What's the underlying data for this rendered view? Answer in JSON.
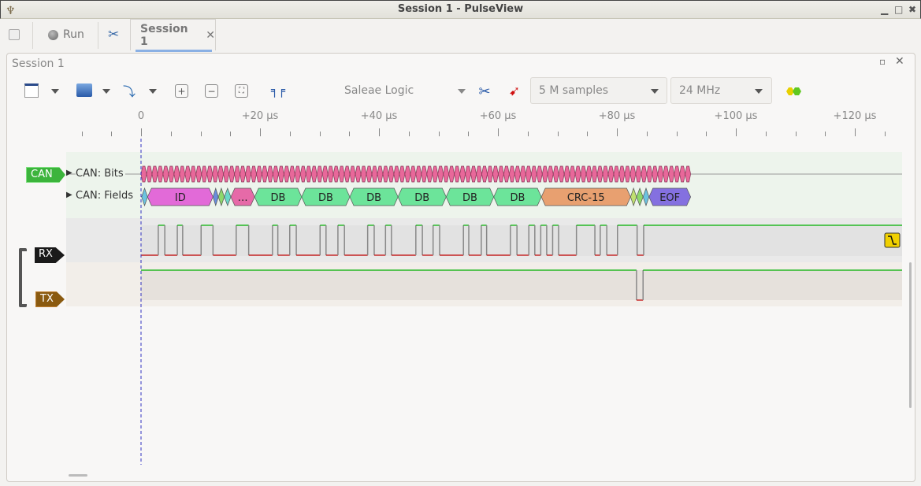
{
  "window": {
    "title": "Session 1 - PulseView"
  },
  "tabs": {
    "run_label": "Run",
    "session_tab": "Session 1"
  },
  "session": {
    "title": "Session 1"
  },
  "toolbar": {
    "device": "Saleae Logic",
    "samples": "5 M samples",
    "samplerate": "24 MHz"
  },
  "ruler": {
    "unit": "µs",
    "labels": [
      "0",
      "+20 µs",
      "+40 µs",
      "+60 µs",
      "+80 µs",
      "+100 µs",
      "+120 µs"
    ],
    "major_values": [
      0,
      20,
      40,
      60,
      80,
      100,
      120
    ],
    "minor_step": 5,
    "range": [
      -10,
      128
    ]
  },
  "decoder": {
    "tag": "CAN",
    "color": "#3cb43c",
    "rows": [
      {
        "label": "CAN: Bits"
      },
      {
        "label": "CAN: Fields"
      }
    ],
    "bits": {
      "start": 0,
      "end": 92.4,
      "color": "#e8689a"
    },
    "fields": [
      {
        "label": "",
        "start": 0.1,
        "end": 1.1,
        "color": "#6bc3e0"
      },
      {
        "label": "ID",
        "start": 1.1,
        "end": 12.1,
        "color": "#e26ad8"
      },
      {
        "label": "",
        "start": 12.1,
        "end": 13.0,
        "color": "#6a8ddc"
      },
      {
        "label": "",
        "start": 13.0,
        "end": 14.0,
        "color": "#8ed86b"
      },
      {
        "label": "",
        "start": 14.0,
        "end": 15.1,
        "color": "#6ad8c8"
      },
      {
        "label": "…",
        "start": 15.1,
        "end": 19.1,
        "color": "#e66aa8"
      },
      {
        "label": "DB",
        "start": 19.1,
        "end": 27.0,
        "color": "#6ce49a"
      },
      {
        "label": "DB",
        "start": 27.0,
        "end": 35.1,
        "color": "#6ce49a"
      },
      {
        "label": "DB",
        "start": 35.1,
        "end": 43.2,
        "color": "#6ce49a"
      },
      {
        "label": "DB",
        "start": 43.2,
        "end": 51.3,
        "color": "#6ce49a"
      },
      {
        "label": "DB",
        "start": 51.3,
        "end": 59.3,
        "color": "#6ce49a"
      },
      {
        "label": "DB",
        "start": 59.3,
        "end": 67.3,
        "color": "#6ce49a"
      },
      {
        "label": "CRC-15",
        "start": 67.3,
        "end": 82.3,
        "color": "#e8a070"
      },
      {
        "label": "",
        "start": 82.3,
        "end": 83.3,
        "color": "#c0e070"
      },
      {
        "label": "",
        "start": 83.3,
        "end": 84.4,
        "color": "#8ed86b"
      },
      {
        "label": "",
        "start": 84.4,
        "end": 85.4,
        "color": "#6bc3e0"
      },
      {
        "label": "EOF",
        "start": 85.4,
        "end": 92.4,
        "color": "#8470e0"
      }
    ]
  },
  "channels": [
    {
      "name": "RX",
      "color": "#1a1a1a",
      "initial": 0,
      "edges": [
        2.9,
        4.0,
        6.1,
        7.0,
        10.1,
        12.1,
        16.0,
        18.1,
        22.1,
        23.0,
        25.0,
        26.1,
        30.1,
        31.1,
        33.1,
        34.2,
        38.1,
        39.2,
        41.1,
        42.1,
        46.2,
        47.3,
        49.1,
        50.2,
        54.2,
        55.1,
        57.2,
        58.1,
        62.1,
        63.2,
        65.2,
        66.2,
        67.2,
        68.2,
        69.2,
        70.2,
        73.2,
        76.3,
        77.2,
        78.3,
        80.1,
        83.4,
        84.5
      ],
      "trigger_icon": "rising-edge-trigger-icon"
    },
    {
      "name": "TX",
      "color": "#8a5a10",
      "initial": 1,
      "edges": [
        83.3,
        84.4
      ]
    }
  ],
  "colors": {
    "high": "#00b000",
    "low": "#c00000",
    "cursor": "#3030c0"
  }
}
